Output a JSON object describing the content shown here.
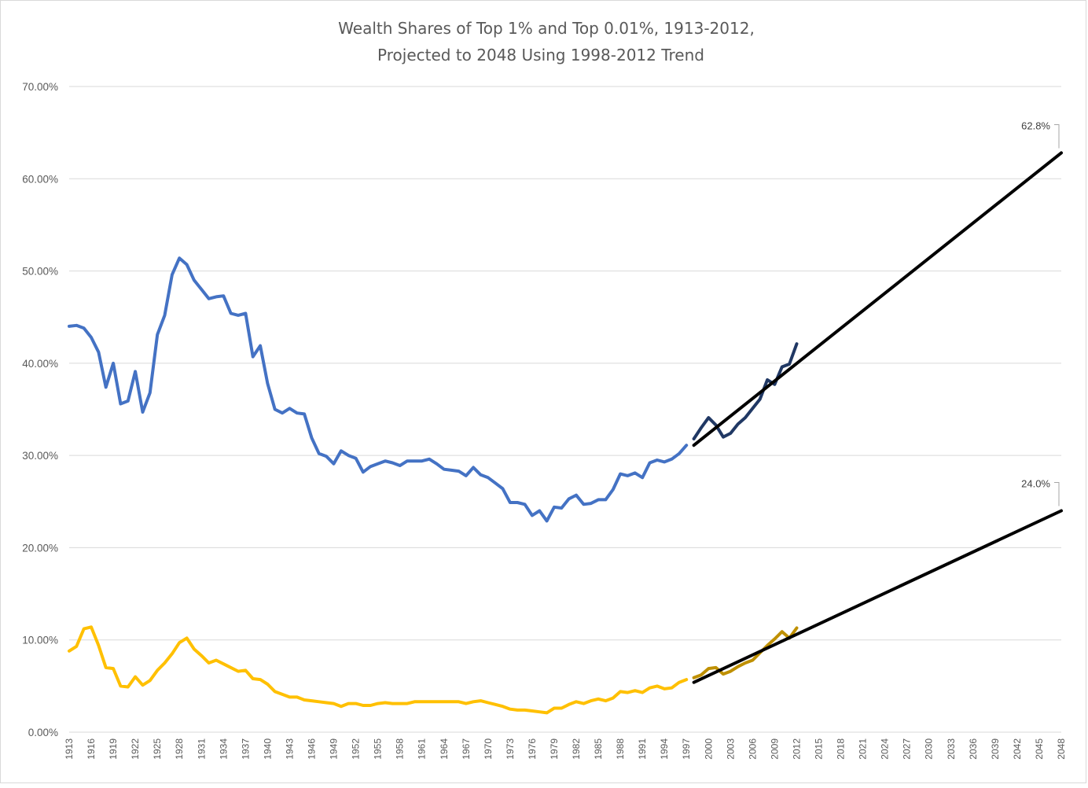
{
  "chart_data": {
    "type": "line",
    "title": [
      "Wealth Shares of Top 1% and Top 0.01%, 1913-2012,",
      "Projected to 2048 Using 1998-2012 Trend"
    ],
    "xlabel": "",
    "ylabel": "",
    "ylim": [
      0,
      0.7
    ],
    "y_ticks": [
      "0.00%",
      "10.00%",
      "20.00%",
      "30.00%",
      "40.00%",
      "50.00%",
      "60.00%",
      "70.00%"
    ],
    "x_range": [
      1913,
      2048
    ],
    "x_tick_step": 3,
    "grid": "horizontal",
    "legend": "none",
    "series": [
      {
        "color": "#4472c4",
        "start_year": 1913,
        "values": [
          0.44,
          0.441,
          0.438,
          0.428,
          0.412,
          0.374,
          0.4,
          0.356,
          0.359,
          0.391,
          0.347,
          0.368,
          0.431,
          0.452,
          0.496,
          0.514,
          0.507,
          0.49,
          0.48,
          0.47,
          0.472,
          0.473,
          0.454,
          0.452,
          0.454,
          0.407,
          0.419,
          0.378,
          0.35,
          0.346,
          0.351,
          0.346,
          0.345,
          0.319,
          0.302,
          0.299,
          0.291,
          0.305,
          0.3,
          0.297,
          0.282,
          0.288,
          0.291,
          0.294,
          0.292,
          0.289,
          0.294,
          0.294,
          0.294,
          0.296,
          0.291,
          0.285,
          0.284,
          0.283,
          0.278,
          0.287,
          0.279,
          0.276,
          0.27,
          0.264,
          0.249,
          0.249,
          0.247,
          0.235,
          0.24,
          0.229,
          0.244,
          0.243,
          0.253,
          0.257,
          0.247,
          0.248,
          0.252,
          0.252,
          0.263,
          0.28,
          0.278,
          0.281,
          0.276,
          0.292,
          0.295,
          0.293,
          0.296,
          0.302,
          0.311
        ]
      },
      {
        "color": "#203864",
        "start_year": 1998,
        "values": [
          0.318,
          0.33,
          0.341,
          0.333,
          0.32,
          0.324,
          0.334,
          0.341,
          0.351,
          0.361,
          0.382,
          0.377,
          0.396,
          0.399,
          0.421
        ]
      },
      {
        "color": "#ffc000",
        "start_year": 1913,
        "values": [
          0.088,
          0.093,
          0.112,
          0.114,
          0.094,
          0.07,
          0.069,
          0.05,
          0.049,
          0.06,
          0.051,
          0.056,
          0.067,
          0.075,
          0.085,
          0.097,
          0.102,
          0.09,
          0.083,
          0.075,
          0.078,
          0.074,
          0.07,
          0.066,
          0.067,
          0.058,
          0.057,
          0.052,
          0.044,
          0.041,
          0.038,
          0.038,
          0.035,
          0.034,
          0.033,
          0.032,
          0.031,
          0.028,
          0.031,
          0.031,
          0.029,
          0.029,
          0.031,
          0.032,
          0.031,
          0.031,
          0.031,
          0.033,
          0.033,
          0.033,
          0.033,
          0.033,
          0.033,
          0.033,
          0.031,
          0.033,
          0.034,
          0.032,
          0.03,
          0.028,
          0.025,
          0.024,
          0.024,
          0.023,
          0.022,
          0.021,
          0.026,
          0.026,
          0.03,
          0.033,
          0.031,
          0.034,
          0.036,
          0.034,
          0.037,
          0.044,
          0.043,
          0.045,
          0.043,
          0.048,
          0.05,
          0.047,
          0.048,
          0.054,
          0.057
        ]
      },
      {
        "color": "#bf9000",
        "start_year": 1998,
        "values": [
          0.059,
          0.062,
          0.069,
          0.07,
          0.063,
          0.066,
          0.071,
          0.075,
          0.078,
          0.086,
          0.094,
          0.101,
          0.109,
          0.102,
          0.113
        ]
      },
      {
        "name": "",
        "color": "#000000",
        "x": [
          1998,
          2048
        ],
        "y": [
          0.311,
          0.628
        ]
      },
      {
        "name": "",
        "color": "#000000",
        "x": [
          1998,
          2048
        ],
        "y": [
          0.054,
          0.24
        ]
      }
    ],
    "annotations": [
      {
        "text": "62.8%",
        "x": 2048,
        "y": 0.628
      },
      {
        "text": "24.0%",
        "x": 2048,
        "y": 0.24
      }
    ]
  }
}
